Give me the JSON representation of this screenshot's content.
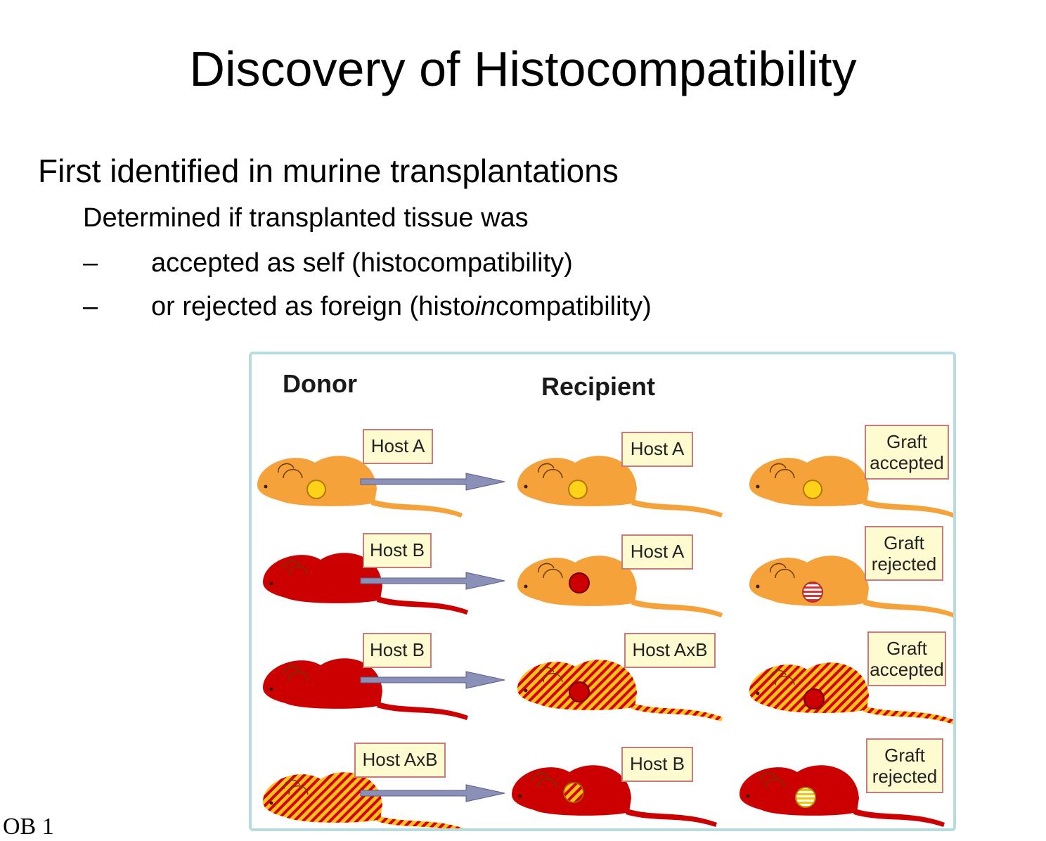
{
  "slide": {
    "title": "Discovery of Histocompatibility",
    "bullet1": "First identified in murine transplantations",
    "bullet2": "Determined if transplanted tissue was",
    "sub_dash": "–",
    "sub1": "accepted as self (histocompatibility)",
    "sub2_pre": "or rejected as foreign (histo",
    "sub2_em": "in",
    "sub2_post": "compatibility)",
    "footer": "OB 1"
  },
  "figure": {
    "donor_header": "Donor",
    "recipient_header": "Recipient",
    "colors": {
      "orange": "#f6a23a",
      "red": "#cc0000",
      "graft_yellow": "#ffd21a",
      "arrow": "#8a90b8",
      "border": "#b7dce0"
    },
    "rows": [
      {
        "donor_label": "Host A",
        "recipient_label": "Host A",
        "result_line1": "Graft",
        "result_line2": "accepted"
      },
      {
        "donor_label": "Host B",
        "recipient_label": "Host A",
        "result_line1": "Graft",
        "result_line2": "rejected"
      },
      {
        "donor_label": "Host B",
        "recipient_label": "Host AxB",
        "result_line1": "Graft",
        "result_line2": "accepted"
      },
      {
        "donor_label": "Host AxB",
        "recipient_label": "Host B",
        "result_line1": "Graft",
        "result_line2": "rejected"
      }
    ]
  }
}
